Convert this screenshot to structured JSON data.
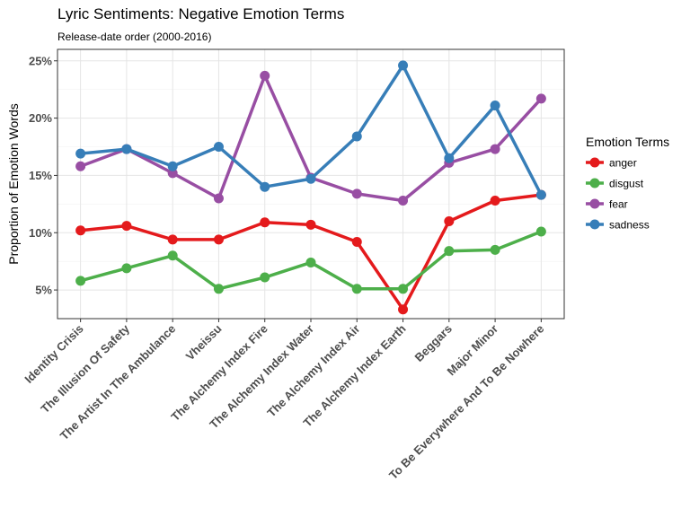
{
  "chart_data": {
    "type": "line",
    "title": "Lyric Sentiments: Negative Emotion Terms",
    "subtitle": "Release-date order (2000-2016)",
    "xlabel": "",
    "ylabel": "Proportion of Emotion Words",
    "ylim": [
      0.025,
      0.26
    ],
    "yticks": [
      0.05,
      0.1,
      0.15,
      0.2,
      0.25
    ],
    "ytick_labels": [
      "5%",
      "10%",
      "15%",
      "20%",
      "25%"
    ],
    "grid": true,
    "legend_position": "right",
    "legend_title": "Emotion Terms",
    "categories": [
      "Identity Crisis",
      "The Illusion Of Safety",
      "The Artist In The Ambulance",
      "Vheissu",
      "The Alchemy Index Fire",
      "The Alchemy Index Water",
      "The Alchemy Index Air",
      "The Alchemy Index Earth",
      "Beggars",
      "Major Minor",
      "To Be Everywhere And To Be Nowhere"
    ],
    "series": [
      {
        "name": "anger",
        "color": "#e41a1c",
        "values": [
          0.102,
          0.106,
          0.094,
          0.094,
          0.109,
          0.107,
          0.092,
          0.033,
          0.11,
          0.128,
          0.133
        ]
      },
      {
        "name": "disgust",
        "color": "#4daf4a",
        "values": [
          0.058,
          0.069,
          0.08,
          0.051,
          0.061,
          0.074,
          0.051,
          0.051,
          0.084,
          0.085,
          0.101
        ]
      },
      {
        "name": "fear",
        "color": "#984ea3",
        "values": [
          0.158,
          0.173,
          0.152,
          0.13,
          0.237,
          0.148,
          0.134,
          0.128,
          0.161,
          0.173,
          0.217
        ]
      },
      {
        "name": "sadness",
        "color": "#377eb8",
        "values": [
          0.169,
          0.173,
          0.158,
          0.175,
          0.14,
          0.147,
          0.184,
          0.246,
          0.165,
          0.211,
          0.133
        ]
      }
    ]
  }
}
